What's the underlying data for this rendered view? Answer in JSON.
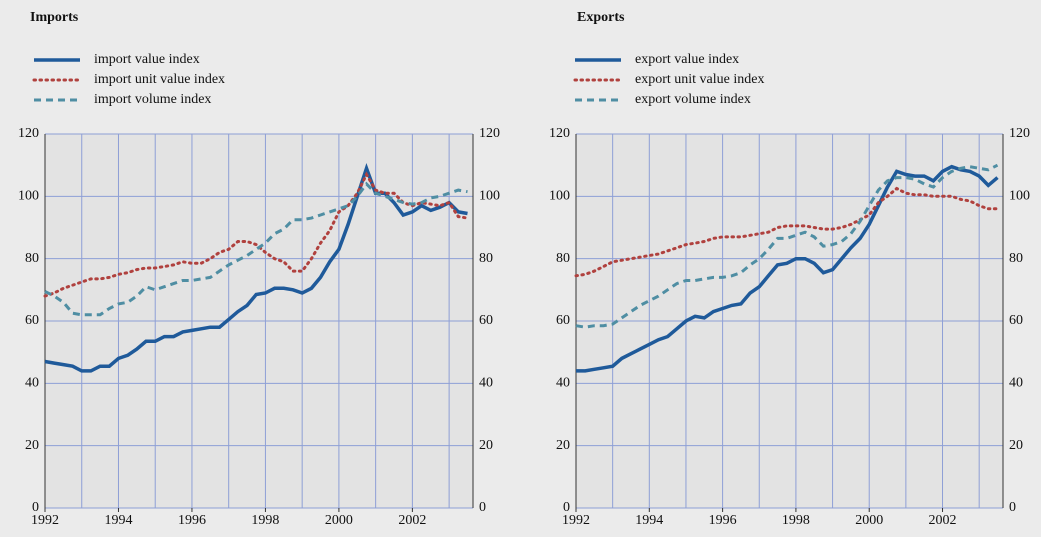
{
  "chart_data": [
    {
      "type": "line",
      "title": "Imports",
      "x": [
        1992,
        1992.25,
        1992.5,
        1992.75,
        1993,
        1993.25,
        1993.5,
        1993.75,
        1994,
        1994.25,
        1994.5,
        1994.75,
        1995,
        1995.25,
        1995.5,
        1995.75,
        1996,
        1996.25,
        1996.5,
        1996.75,
        1997,
        1997.25,
        1997.5,
        1997.75,
        1998,
        1998.25,
        1998.5,
        1998.75,
        1999,
        1999.25,
        1999.5,
        1999.75,
        2000,
        2000.25,
        2000.5,
        2000.75,
        2001,
        2001.25,
        2001.5,
        2001.75,
        2002,
        2002.25,
        2002.5,
        2002.75,
        2003,
        2003.25,
        2003.5
      ],
      "series": [
        {
          "name": "import value index",
          "color": "#1f5a9a",
          "dash": "solid",
          "values": [
            47,
            46.5,
            46,
            45.5,
            44,
            44,
            45.5,
            45.5,
            48,
            49,
            51,
            53.5,
            53.5,
            55,
            55,
            56.5,
            57,
            57.5,
            58,
            58,
            60.5,
            63,
            65,
            68.5,
            69,
            70.5,
            70.5,
            70,
            69,
            70.5,
            74,
            79,
            83,
            91,
            100,
            109,
            101,
            101,
            98,
            94,
            95,
            97,
            95.5,
            96.5,
            98,
            95,
            94.5
          ]
        },
        {
          "name": "import unit value index",
          "color": "#b0413e",
          "dash": "dotted",
          "values": [
            68,
            69,
            70.5,
            71.5,
            72.5,
            73.5,
            73.5,
            74,
            75,
            75.5,
            76.5,
            77,
            77,
            77.5,
            78,
            79,
            78.5,
            78.5,
            80,
            82,
            83,
            85.5,
            85.5,
            84.5,
            82,
            80,
            79,
            76,
            76,
            80,
            85,
            89,
            95,
            97,
            101,
            107,
            102,
            101,
            101,
            98,
            97,
            98,
            97.5,
            97,
            98,
            93.5,
            93
          ]
        },
        {
          "name": "import volume index",
          "color": "#4f8ea3",
          "dash": "dashed",
          "values": [
            69.5,
            68,
            66,
            62.5,
            62,
            62,
            62,
            64,
            65.5,
            66,
            68,
            71,
            70,
            71,
            72,
            73,
            73,
            73.5,
            74,
            76,
            78,
            79.5,
            81,
            83,
            85,
            88,
            89.5,
            92.5,
            92.5,
            93,
            94,
            95,
            96,
            97,
            100,
            104,
            101,
            100,
            99,
            98,
            97.5,
            98,
            99.5,
            100,
            101,
            102,
            101.5
          ]
        }
      ],
      "xlim": [
        1992,
        2003.65
      ],
      "xticks": [
        1992,
        1994,
        1996,
        1998,
        2000,
        2002
      ],
      "minor_xticks": [
        1993,
        1995,
        1997,
        1999,
        2001,
        2003
      ],
      "ylim": [
        0,
        120
      ],
      "yticks": [
        0,
        20,
        40,
        60,
        80,
        100,
        120
      ],
      "grid": true
    },
    {
      "type": "line",
      "title": "Exports",
      "x": [
        1992,
        1992.25,
        1992.5,
        1992.75,
        1993,
        1993.25,
        1993.5,
        1993.75,
        1994,
        1994.25,
        1994.5,
        1994.75,
        1995,
        1995.25,
        1995.5,
        1995.75,
        1996,
        1996.25,
        1996.5,
        1996.75,
        1997,
        1997.25,
        1997.5,
        1997.75,
        1998,
        1998.25,
        1998.5,
        1998.75,
        1999,
        1999.25,
        1999.5,
        1999.75,
        2000,
        2000.25,
        2000.5,
        2000.75,
        2001,
        2001.25,
        2001.5,
        2001.75,
        2002,
        2002.25,
        2002.5,
        2002.75,
        2003,
        2003.25,
        2003.5
      ],
      "series": [
        {
          "name": "export value index",
          "color": "#1f5a9a",
          "dash": "solid",
          "values": [
            44,
            44,
            44.5,
            45,
            45.5,
            48,
            49.5,
            51,
            52.5,
            54,
            55,
            57.5,
            60,
            61.5,
            61,
            63,
            64,
            65,
            65.5,
            69,
            71,
            74.5,
            78,
            78.5,
            80,
            80,
            78.5,
            75.5,
            76.5,
            80,
            83.5,
            86.5,
            91,
            97,
            103,
            108,
            107,
            106.5,
            106.5,
            105,
            108,
            109.5,
            108.5,
            108,
            106.5,
            103.5,
            106
          ]
        },
        {
          "name": "export unit value index",
          "color": "#b0413e",
          "dash": "dotted",
          "values": [
            74.5,
            75,
            76,
            77.5,
            79,
            79.5,
            80,
            80.5,
            81,
            81.5,
            82.5,
            83.5,
            84.5,
            85,
            85.5,
            86.5,
            87,
            87,
            87,
            87.5,
            88,
            88.5,
            90,
            90.5,
            90.5,
            90.5,
            90,
            89.5,
            89.5,
            90,
            91,
            92.5,
            94,
            98,
            100,
            102.5,
            101,
            100.5,
            100.5,
            100,
            100,
            100,
            99,
            98.5,
            97,
            96,
            96
          ]
        },
        {
          "name": "export volume index",
          "color": "#4f8ea3",
          "dash": "dashed",
          "values": [
            58.5,
            58,
            58.5,
            58.5,
            59,
            61,
            63,
            65,
            66.5,
            68,
            70,
            72,
            73,
            73,
            73.5,
            74,
            74,
            74.5,
            75.5,
            78,
            80,
            83,
            86.5,
            86.5,
            87.5,
            88.5,
            87,
            84,
            84.5,
            85.5,
            88,
            92,
            97,
            102,
            105,
            106,
            106,
            105.5,
            104,
            103,
            106,
            108,
            109,
            109.5,
            109,
            108.5,
            110
          ]
        }
      ],
      "xlim": [
        1992,
        2003.65
      ],
      "xticks": [
        1992,
        1994,
        1996,
        1998,
        2000,
        2002
      ],
      "minor_xticks": [
        1993,
        1995,
        1997,
        1999,
        2001,
        2003
      ],
      "ylim": [
        0,
        120
      ],
      "yticks": [
        0,
        20,
        40,
        60,
        80,
        100,
        120
      ],
      "grid": true
    }
  ]
}
